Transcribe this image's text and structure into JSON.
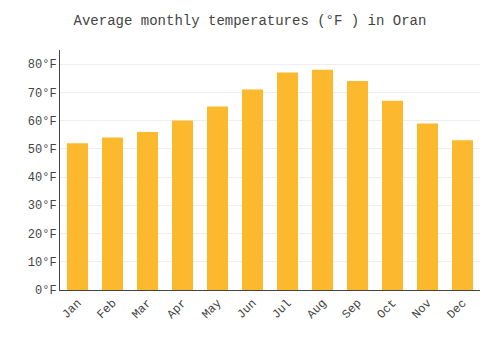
{
  "chart_data": {
    "type": "bar",
    "title": "Average monthly temperatures (°F ) in Oran",
    "categories": [
      "Jan",
      "Feb",
      "Mar",
      "Apr",
      "May",
      "Jun",
      "Jul",
      "Aug",
      "Sep",
      "Oct",
      "Nov",
      "Dec"
    ],
    "values": [
      52,
      54,
      56,
      60,
      65,
      71,
      77,
      78,
      74,
      67,
      59,
      53
    ],
    "color": "#FDB92E",
    "ylim": [
      0,
      85
    ],
    "yticks": [
      {
        "value": 0,
        "label": "0°F"
      },
      {
        "value": 10,
        "label": "10°F"
      },
      {
        "value": 20,
        "label": "20°F"
      },
      {
        "value": 30,
        "label": "30°F"
      },
      {
        "value": 40,
        "label": "40°F"
      },
      {
        "value": 50,
        "label": "50°F"
      },
      {
        "value": 60,
        "label": "60°F"
      },
      {
        "value": 70,
        "label": "70°F"
      },
      {
        "value": 80,
        "label": "80°F"
      }
    ],
    "grid": true
  }
}
